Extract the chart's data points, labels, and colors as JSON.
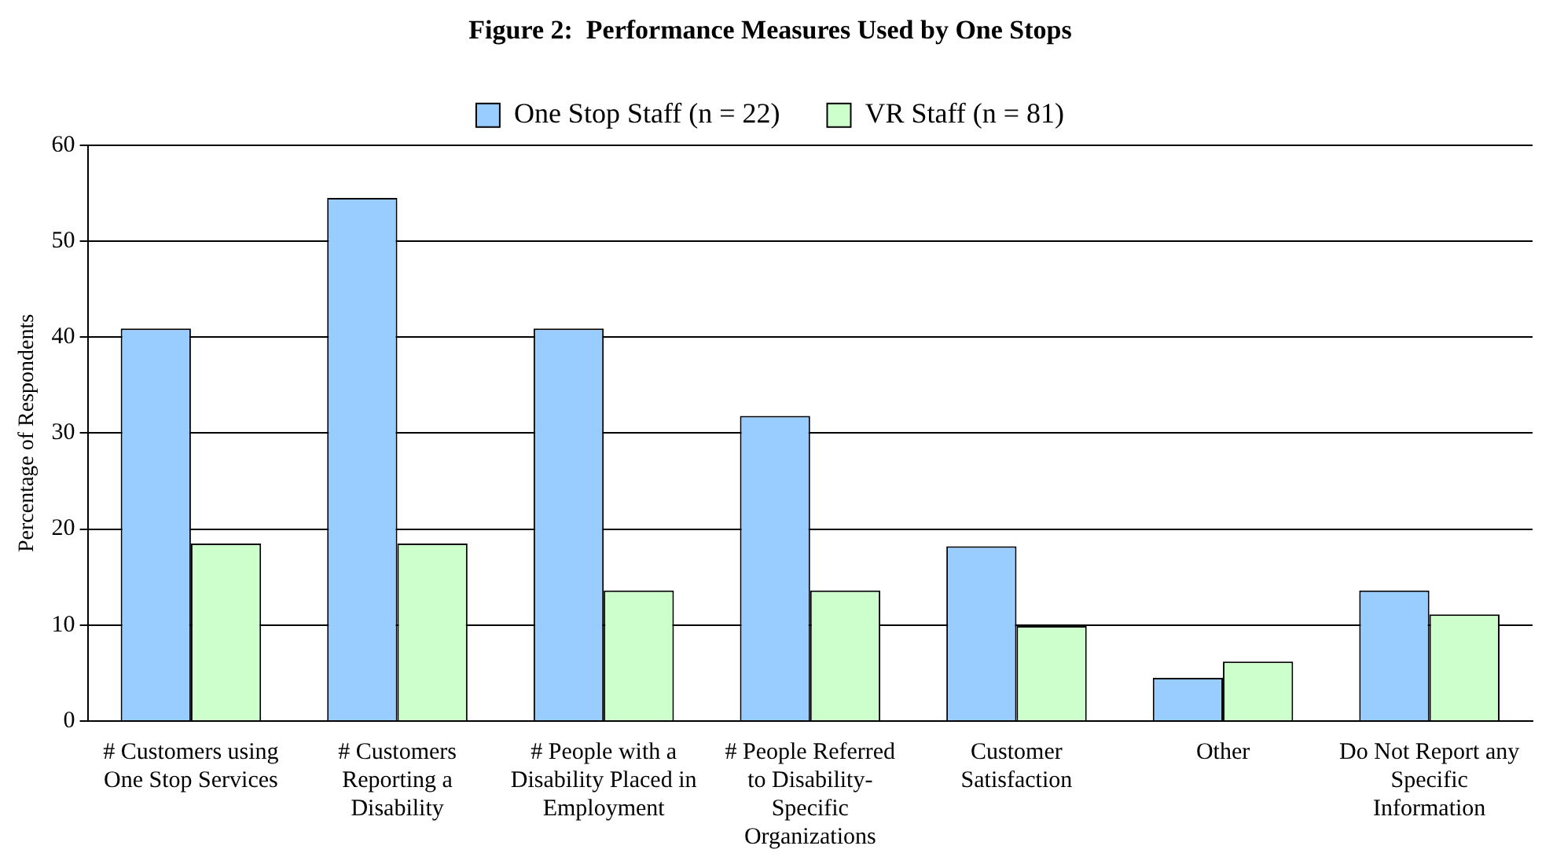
{
  "chart_data": {
    "type": "bar",
    "title": "Figure 2:  Performance Measures Used by One Stops",
    "ylabel": "Percentage of Respondents",
    "categories": [
      "# Customers using One Stop Services",
      "# Customers Reporting a Disability",
      "# People with a Disability Placed in Employment",
      "# People Referred to Disability-Specific Organizations",
      "Customer Satisfaction",
      "Other",
      "Do Not Report any Specific Information"
    ],
    "series": [
      {
        "name": "One Stop Staff (n = 22)",
        "color": "#99ccff",
        "values": [
          40.9,
          54.5,
          40.9,
          31.8,
          18.2,
          4.5,
          13.6
        ]
      },
      {
        "name": "VR Staff (n = 81)",
        "color": "#ccffcc",
        "values": [
          18.5,
          18.5,
          13.6,
          13.6,
          9.9,
          6.2,
          11.1
        ]
      }
    ],
    "ylim": [
      0,
      60
    ],
    "yticks": [
      0,
      10,
      20,
      30,
      40,
      50,
      60
    ],
    "grid": "y",
    "legend": "top"
  }
}
